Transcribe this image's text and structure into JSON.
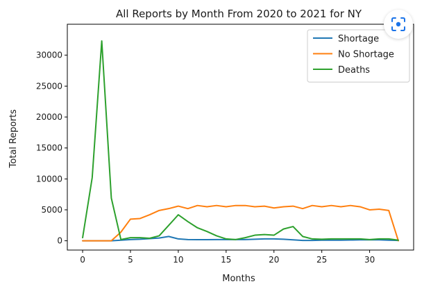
{
  "chart_data": {
    "type": "line",
    "title": "All Reports by Month From 2020 to 2021 for NY",
    "xlabel": "Months",
    "ylabel": "Total Reports",
    "xlim": [
      -1.6,
      34.6
    ],
    "ylim": [
      -1500,
      35000
    ],
    "xticks": [
      0,
      5,
      10,
      15,
      20,
      25,
      30
    ],
    "yticks": [
      0,
      5000,
      10000,
      15000,
      20000,
      25000,
      30000
    ],
    "legend_position": "top-right",
    "grid": false,
    "x": [
      0,
      1,
      2,
      3,
      4,
      5,
      6,
      7,
      8,
      9,
      10,
      11,
      12,
      13,
      14,
      15,
      16,
      17,
      18,
      19,
      20,
      21,
      22,
      23,
      24,
      25,
      26,
      27,
      28,
      29,
      30,
      31,
      32,
      33
    ],
    "series": [
      {
        "name": "Shortage",
        "color": "#1f77b4",
        "values": [
          0,
          0,
          0,
          0,
          100,
          200,
          250,
          350,
          450,
          700,
          300,
          200,
          180,
          180,
          200,
          200,
          200,
          200,
          250,
          300,
          300,
          250,
          150,
          50,
          50,
          100,
          100,
          100,
          120,
          150,
          150,
          150,
          100,
          50
        ]
      },
      {
        "name": "No Shortage",
        "color": "#ff7f0e",
        "values": [
          0,
          0,
          0,
          0,
          1400,
          3500,
          3600,
          4200,
          4900,
          5200,
          5600,
          5200,
          5700,
          5500,
          5700,
          5500,
          5700,
          5700,
          5500,
          5600,
          5300,
          5500,
          5600,
          5200,
          5700,
          5500,
          5700,
          5500,
          5700,
          5500,
          5000,
          5100,
          4900,
          0
        ]
      },
      {
        "name": "Deaths",
        "color": "#2ca02c",
        "values": [
          500,
          10200,
          32300,
          6900,
          200,
          500,
          500,
          400,
          800,
          2500,
          4200,
          3100,
          2100,
          1500,
          800,
          300,
          200,
          500,
          900,
          1000,
          900,
          1900,
          2300,
          700,
          300,
          250,
          300,
          300,
          300,
          300,
          200,
          300,
          300,
          100
        ]
      }
    ]
  },
  "ui": {
    "corner_button_icon": "focus-scan-icon",
    "accent_color": "#1a73e8"
  }
}
